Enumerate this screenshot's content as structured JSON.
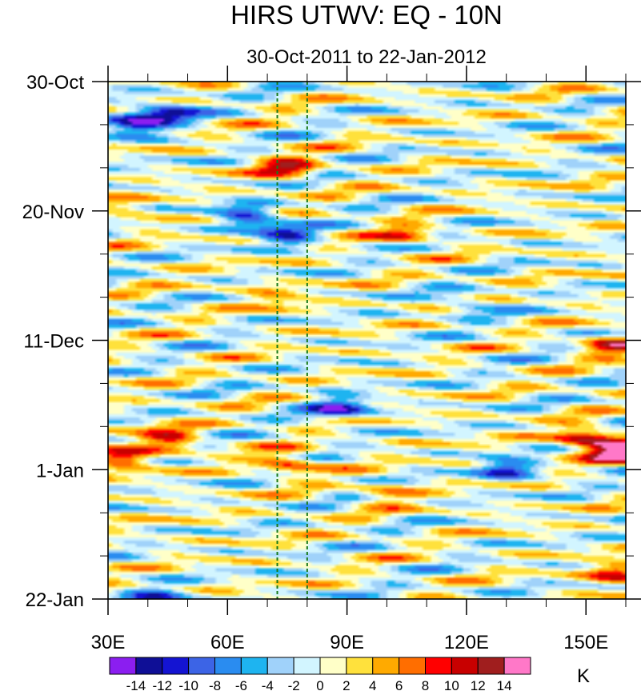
{
  "chart_data": {
    "type": "heatmap",
    "title": "HIRS UTWV: EQ - 10N",
    "subtitle": "30-Oct-2011 to 22-Jan-2012",
    "xlabel": "",
    "ylabel": "",
    "x_range": [
      30,
      160
    ],
    "x_ticks": [
      {
        "value": 30,
        "label": "30E"
      },
      {
        "value": 60,
        "label": "60E"
      },
      {
        "value": 90,
        "label": "90E"
      },
      {
        "value": 120,
        "label": "120E"
      },
      {
        "value": 150,
        "label": "150E"
      }
    ],
    "y_range_days": [
      0,
      84
    ],
    "y_ticks": [
      {
        "value": 0,
        "label": "30-Oct"
      },
      {
        "value": 21,
        "label": "20-Nov"
      },
      {
        "value": 42,
        "label": "11-Dec"
      },
      {
        "value": 63,
        "label": "1-Jan"
      },
      {
        "value": 84,
        "label": "22-Jan"
      }
    ],
    "reference_lines_lon": [
      72.5,
      80
    ],
    "colorbar": {
      "unit": "K",
      "levels": [
        "-14",
        "-12",
        "-10",
        "-8",
        "-6",
        "-4",
        "-2",
        "0",
        "2",
        "4",
        "6",
        "8",
        "10",
        "12",
        "14"
      ],
      "colors": [
        "#8b1ef0",
        "#0f0f96",
        "#1414d2",
        "#3c64e6",
        "#2a8cf0",
        "#1eb4f0",
        "#a0d2fa",
        "#d2f5ff",
        "#ffffc8",
        "#ffe13c",
        "#ffaa00",
        "#ff6e00",
        "#ff0000",
        "#c80000",
        "#a01e1e",
        "#ff78c8"
      ]
    },
    "anomaly_features": [
      {
        "lon": 45,
        "day": 5,
        "value": -11
      },
      {
        "lon": 37,
        "day": 7,
        "value": -12
      },
      {
        "lon": 75,
        "day": 14,
        "value": 10
      },
      {
        "lon": 65,
        "day": 22,
        "value": -11
      },
      {
        "lon": 75,
        "day": 25,
        "value": -10
      },
      {
        "lon": 105,
        "day": 25,
        "value": 7
      },
      {
        "lon": 35,
        "day": 21,
        "value": 5
      },
      {
        "lon": 72,
        "day": 35,
        "value": 5
      },
      {
        "lon": 120,
        "day": 36,
        "value": -6
      },
      {
        "lon": 45,
        "day": 58,
        "value": 10
      },
      {
        "lon": 33,
        "day": 61,
        "value": 11
      },
      {
        "lon": 75,
        "day": 62,
        "value": 9
      },
      {
        "lon": 88,
        "day": 53,
        "value": -11
      },
      {
        "lon": 150,
        "day": 58,
        "value": 12
      },
      {
        "lon": 158,
        "day": 60,
        "value": 15
      },
      {
        "lon": 130,
        "day": 63,
        "value": -10
      },
      {
        "lon": 157,
        "day": 43,
        "value": 10
      },
      {
        "lon": 100,
        "day": 67,
        "value": 5
      },
      {
        "lon": 158,
        "day": 80,
        "value": 10
      },
      {
        "lon": 42,
        "day": 84,
        "value": -8
      }
    ]
  }
}
